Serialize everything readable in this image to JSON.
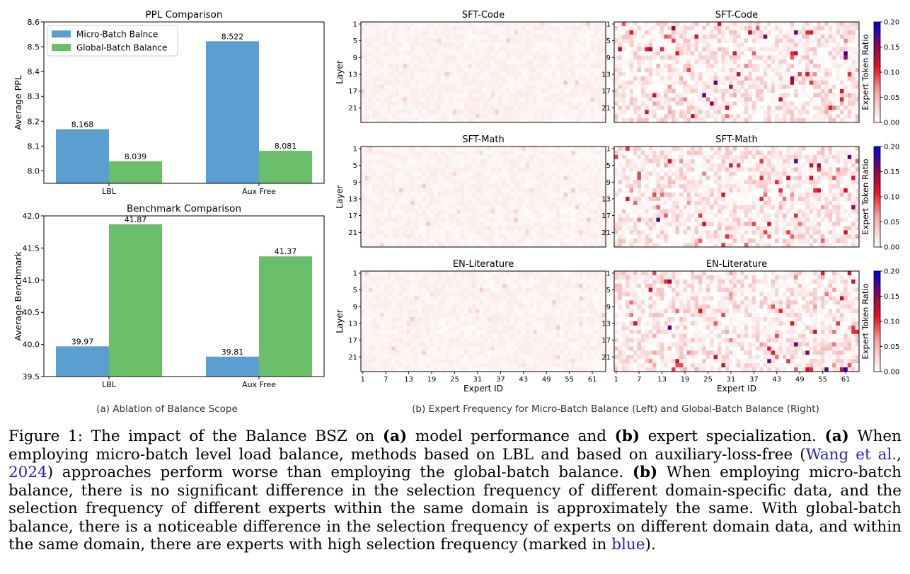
{
  "figure": {
    "subcaption_a": "(a) Ablation of Balance Scope",
    "subcaption_b": "(b) Expert Frequency for Micro-Batch Balance (Left) and Global-Batch Balance (Right)"
  },
  "colors": {
    "micro": "#5b9fd1",
    "global": "#6cbf6a",
    "link": "#1f1fc8"
  },
  "caption": {
    "lead": "Figure 1:",
    "t1": " The impact of the Balance BSZ on ",
    "a1": "(a)",
    "t2": " model performance and ",
    "b1": "(b)",
    "t3": " expert specialization. ",
    "a2": "(a)",
    "t4": " When employing micro-batch level load balance, methods based on LBL and based on auxiliary-loss-free (",
    "cite_author": "Wang et al.",
    "cite_sep": ", ",
    "cite_year": "2024",
    "t5": ") approaches perform worse than employing the global-batch balance. ",
    "b2": "(b)",
    "t6": " When employing micro-batch balance, there is no significant difference in the selection frequency of different domain-specific data, and the selection frequency of different experts within the same domain is approximately the same. With global-batch balance, there is a noticeable difference in the selection frequency of experts on different domain data, and within the same domain, there are experts with high selection frequency (marked in ",
    "blue_word": "blue",
    "t7": ")."
  },
  "chart_data": [
    {
      "type": "bar",
      "title": "PPL Comparison",
      "xlabel": "",
      "ylabel": "Average PPL",
      "categories": [
        "LBL",
        "Aux Free"
      ],
      "series": [
        {
          "name": "Micro-Batch Balnce",
          "values": [
            8.168,
            8.522
          ],
          "labels": [
            "8.168",
            "8.522"
          ]
        },
        {
          "name": "Global-Batch Balance",
          "values": [
            8.039,
            8.081
          ],
          "labels": [
            "8.039",
            "8.081"
          ]
        }
      ],
      "ylim": [
        7.95,
        8.6
      ],
      "yticks": [
        "8.0",
        "8.1",
        "8.2",
        "8.3",
        "8.4",
        "8.5",
        "8.6"
      ],
      "legend": "top-left",
      "grid": false
    },
    {
      "type": "bar",
      "title": "Benchmark Comparison",
      "xlabel": "",
      "ylabel": "Average Benchmark",
      "categories": [
        "LBL",
        "Aux Free"
      ],
      "series": [
        {
          "name": "Micro-Batch Balnce",
          "values": [
            39.97,
            39.81
          ],
          "labels": [
            "39.97",
            "39.81"
          ]
        },
        {
          "name": "Global-Batch Balance",
          "values": [
            41.87,
            41.37
          ],
          "labels": [
            "41.87",
            "41.37"
          ]
        }
      ],
      "ylim": [
        39.5,
        42.0
      ],
      "yticks": [
        "39.5",
        "40.0",
        "40.5",
        "41.0",
        "41.5",
        "42.0"
      ],
      "grid": false
    },
    {
      "type": "heatmap",
      "rows": [
        {
          "title": "SFT-Code"
        },
        {
          "title": "SFT-Math"
        },
        {
          "title": "EN-Literature"
        }
      ],
      "ylabel": "Layer",
      "xlabel": "Expert ID",
      "yticks": [
        "1",
        "5",
        "9",
        "13",
        "17",
        "21"
      ],
      "xticks": [
        "1",
        "7",
        "13",
        "19",
        "25",
        "31",
        "37",
        "43",
        "49",
        "55",
        "61"
      ],
      "colorbar_label": "Expert Token Ratio",
      "colorbar_ticks": [
        "0.00",
        "0.05",
        "0.10",
        "0.15",
        "0.20"
      ],
      "colorbar_range": [
        0.0,
        0.2
      ]
    }
  ]
}
